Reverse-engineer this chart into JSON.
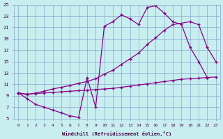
{
  "xlabel": "Windchill (Refroidissement éolien,°C)",
  "bg_color": "#c8eef0",
  "grid_color": "#88aacc",
  "line_color": "#880088",
  "xlim": [
    -0.5,
    23.5
  ],
  "ylim": [
    5,
    25
  ],
  "xticks": [
    0,
    1,
    2,
    3,
    4,
    5,
    6,
    7,
    8,
    9,
    10,
    11,
    12,
    13,
    14,
    15,
    16,
    17,
    18,
    19,
    20,
    21,
    22,
    23
  ],
  "yticks": [
    5,
    7,
    9,
    11,
    13,
    15,
    17,
    19,
    21,
    23,
    25
  ],
  "curveA_x": [
    0,
    1,
    2,
    3,
    4,
    5,
    6,
    7,
    8,
    9,
    10,
    11,
    12,
    13,
    14,
    15,
    16,
    17,
    18,
    19,
    20,
    21,
    22
  ],
  "curveA_y": [
    9.5,
    8.5,
    7.5,
    7.0,
    6.5,
    6.0,
    5.5,
    5.2,
    12.2,
    7.0,
    21.2,
    22.0,
    23.2,
    22.5,
    21.5,
    24.5,
    24.8,
    23.5,
    22.0,
    21.5,
    17.5,
    15.0,
    12.2
  ],
  "curveB_x": [
    0,
    1,
    2,
    3,
    4,
    5,
    6,
    7,
    8,
    9,
    10,
    11,
    12,
    13,
    14,
    15,
    16,
    17,
    18,
    20,
    21,
    22,
    23
  ],
  "curveB_y": [
    9.5,
    9.2,
    9.5,
    9.8,
    10.2,
    10.5,
    10.8,
    11.2,
    11.5,
    12.0,
    12.8,
    13.5,
    14.5,
    15.5,
    16.5,
    18.0,
    19.2,
    20.5,
    21.5,
    22.0,
    21.5,
    17.5,
    15.0
  ],
  "curveC_x": [
    0,
    1,
    2,
    3,
    4,
    5,
    6,
    7,
    8,
    9,
    10,
    11,
    12,
    13,
    14,
    15,
    16,
    17,
    18,
    19,
    20,
    21,
    22,
    23
  ],
  "curveC_y": [
    9.5,
    9.3,
    9.4,
    9.5,
    9.6,
    9.7,
    9.8,
    9.9,
    10.0,
    10.1,
    10.2,
    10.3,
    10.5,
    10.7,
    10.9,
    11.1,
    11.3,
    11.5,
    11.7,
    11.9,
    12.0,
    12.1,
    12.2,
    12.3
  ]
}
